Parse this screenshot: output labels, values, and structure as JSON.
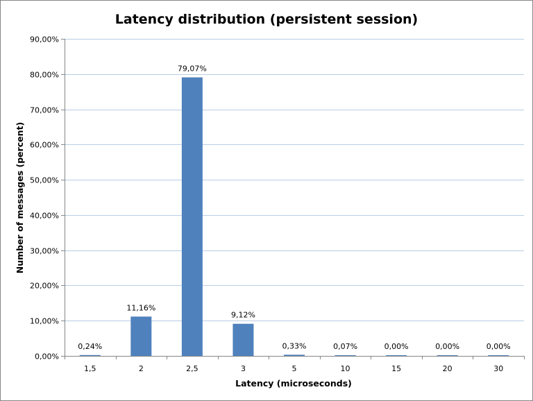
{
  "chart_data": {
    "type": "bar",
    "title": "Latency distribution (persistent session)",
    "xlabel": "Latency (microseconds)",
    "ylabel": "Number of messages (percent)",
    "categories": [
      "1,5",
      "2",
      "2,5",
      "3",
      "5",
      "10",
      "15",
      "20",
      "30"
    ],
    "values": [
      0.24,
      11.16,
      79.07,
      9.12,
      0.33,
      0.07,
      0.0,
      0.0,
      0.0
    ],
    "data_labels": [
      "0,24%",
      "11,16%",
      "79,07%",
      "9,12%",
      "0,33%",
      "0,07%",
      "0,00%",
      "0,00%",
      "0,00%"
    ],
    "ylim": [
      0,
      90
    ],
    "yticks": [
      0,
      10,
      20,
      30,
      40,
      50,
      60,
      70,
      80,
      90
    ],
    "ytick_labels": [
      "0,00%",
      "10,00%",
      "20,00%",
      "30,00%",
      "40,00%",
      "50,00%",
      "60,00%",
      "70,00%",
      "80,00%",
      "90,00%"
    ],
    "grid": true,
    "legend": "none",
    "colors": {
      "bar": "#4F81BD",
      "gridline": "#B9CDE5",
      "axis": "#868686",
      "frame": "#868686",
      "text": "#000000"
    }
  }
}
